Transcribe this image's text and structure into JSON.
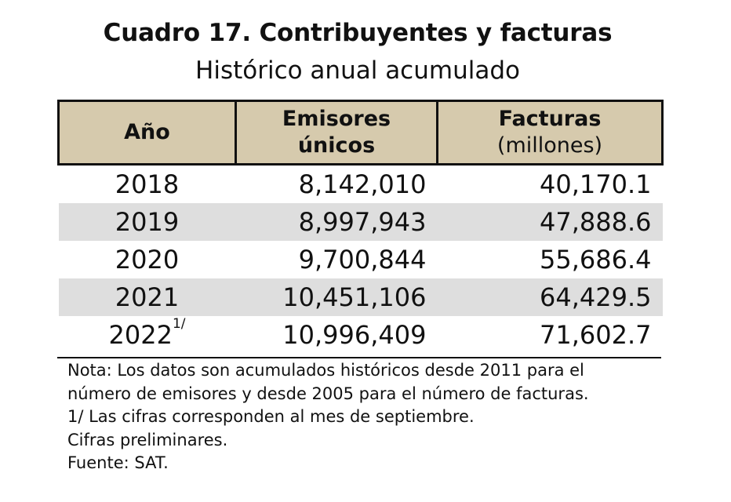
{
  "title": "Cuadro 17. Contribuyentes y facturas",
  "subtitle": "Histórico anual acumulado",
  "table": {
    "headers": {
      "year": "Año",
      "emisores_line1": "Emisores",
      "emisores_line2": "únicos",
      "facturas_line1": "Facturas",
      "facturas_line2": "(millones)"
    },
    "rows": [
      {
        "year": "2018",
        "sup": "",
        "emisores": "8,142,010",
        "facturas": "40,170.1"
      },
      {
        "year": "2019",
        "sup": "",
        "emisores": "8,997,943",
        "facturas": "47,888.6"
      },
      {
        "year": "2020",
        "sup": "",
        "emisores": "9,700,844",
        "facturas": "55,686.4"
      },
      {
        "year": "2021",
        "sup": "",
        "emisores": "10,451,106",
        "facturas": "64,429.5"
      },
      {
        "year": "2022",
        "sup": "1/",
        "emisores": "10,996,409",
        "facturas": "71,602.7"
      }
    ]
  },
  "notes": [
    "Nota: Los datos son acumulados históricos desde 2011 para el",
    "número de emisores y desde 2005 para el número de facturas.",
    "1/ Las cifras corresponden al mes de septiembre.",
    "Cifras preliminares.",
    "Fuente: SAT."
  ],
  "colors": {
    "header_background": "#d6caad",
    "shaded_row": "#dedede",
    "border": "#111111"
  }
}
